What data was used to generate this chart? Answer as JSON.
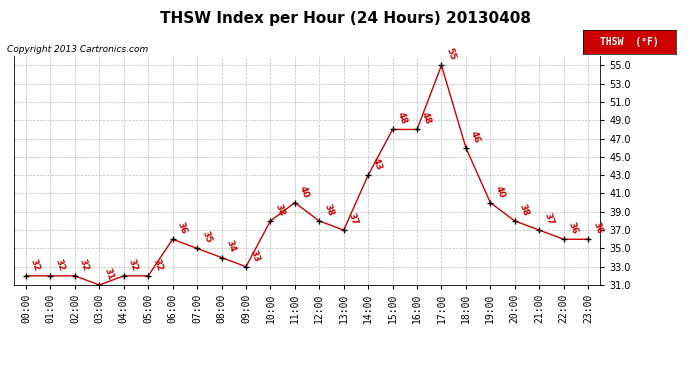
{
  "title": "THSW Index per Hour (24 Hours) 20130408",
  "copyright": "Copyright 2013 Cartronics.com",
  "legend_label": "THSW  (°F)",
  "hours": [
    "00:00",
    "01:00",
    "02:00",
    "03:00",
    "04:00",
    "05:00",
    "06:00",
    "07:00",
    "08:00",
    "09:00",
    "10:00",
    "11:00",
    "12:00",
    "13:00",
    "14:00",
    "15:00",
    "16:00",
    "17:00",
    "18:00",
    "19:00",
    "20:00",
    "21:00",
    "22:00",
    "23:00"
  ],
  "values": [
    32,
    32,
    32,
    31,
    32,
    32,
    36,
    35,
    34,
    33,
    38,
    40,
    38,
    37,
    43,
    48,
    48,
    55,
    46,
    40,
    38,
    37,
    36,
    36
  ],
  "ylim": [
    31.0,
    56.0
  ],
  "yticks": [
    31.0,
    33.0,
    35.0,
    37.0,
    39.0,
    41.0,
    43.0,
    45.0,
    47.0,
    49.0,
    51.0,
    53.0,
    55.0
  ],
  "line_color": "#cc0000",
  "marker_color": "black",
  "annotation_color": "#cc0000",
  "background_color": "#ffffff",
  "grid_color": "#bbbbbb",
  "title_fontsize": 11,
  "annotation_fontsize": 6.5,
  "legend_bg": "#cc0000",
  "legend_text_color": "#ffffff",
  "tick_fontsize": 7,
  "copyright_fontsize": 6.5
}
